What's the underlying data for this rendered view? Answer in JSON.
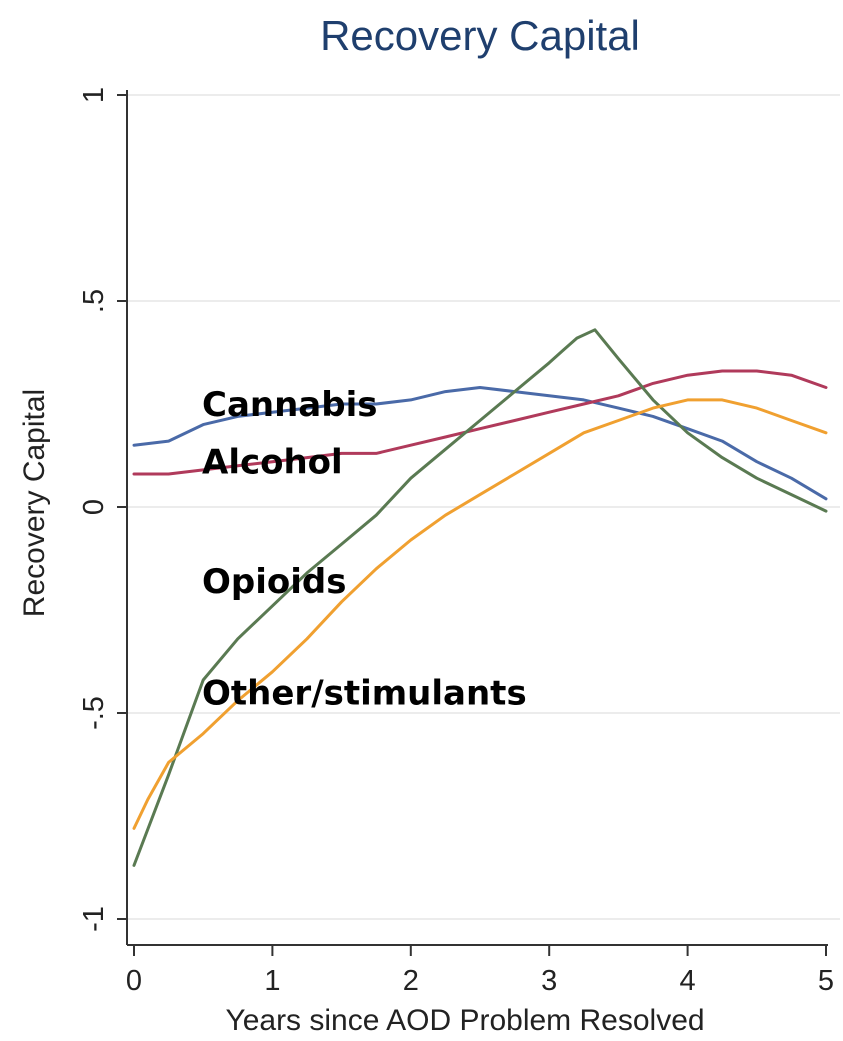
{
  "chart_data": {
    "type": "line",
    "title": "Recovery Capital",
    "xlabel": "Years since AOD Problem Resolved",
    "ylabel": "Recovery Capital",
    "xlim": [
      0,
      5
    ],
    "ylim": [
      -1,
      1
    ],
    "x_ticks": [
      0,
      1,
      2,
      3,
      4,
      5
    ],
    "x_tick_labels": [
      "0",
      "1",
      "2",
      "3",
      "4",
      "5"
    ],
    "y_ticks": [
      -1,
      -0.5,
      0,
      0.5,
      1
    ],
    "y_tick_labels": [
      "-1",
      "-.5",
      "0",
      ".5",
      "1"
    ],
    "grid": "horizontal",
    "legend": "none",
    "series": [
      {
        "name": "Cannabis",
        "color": "#4a6aa8",
        "x": [
          0,
          0.25,
          0.5,
          0.75,
          1,
          1.25,
          1.5,
          1.75,
          2,
          2.25,
          2.5,
          2.75,
          3,
          3.25,
          3.5,
          3.75,
          4,
          4.25,
          4.5,
          4.75,
          5
        ],
        "y": [
          0.15,
          0.16,
          0.2,
          0.22,
          0.23,
          0.24,
          0.25,
          0.25,
          0.26,
          0.28,
          0.29,
          0.28,
          0.27,
          0.26,
          0.24,
          0.22,
          0.19,
          0.16,
          0.11,
          0.07,
          0.02
        ]
      },
      {
        "name": "Alcohol",
        "color": "#b03a5b",
        "x": [
          0,
          0.25,
          0.5,
          0.75,
          1,
          1.25,
          1.5,
          1.75,
          2,
          2.25,
          2.5,
          2.75,
          3,
          3.25,
          3.5,
          3.75,
          4,
          4.25,
          4.5,
          4.75,
          5
        ],
        "y": [
          0.08,
          0.08,
          0.09,
          0.1,
          0.11,
          0.12,
          0.13,
          0.13,
          0.15,
          0.17,
          0.19,
          0.21,
          0.23,
          0.25,
          0.27,
          0.3,
          0.32,
          0.33,
          0.33,
          0.32,
          0.29
        ]
      },
      {
        "name": "Opioids",
        "color": "#5a7a52",
        "x": [
          0,
          0.25,
          0.5,
          0.75,
          1,
          1.25,
          1.5,
          1.75,
          2,
          2.25,
          2.5,
          2.75,
          3,
          3.1,
          3.2,
          3.33,
          3.5,
          3.75,
          4,
          4.25,
          4.5,
          4.75,
          5
        ],
        "y": [
          -0.87,
          -0.65,
          -0.42,
          -0.32,
          -0.24,
          -0.16,
          -0.09,
          -0.02,
          0.07,
          0.14,
          0.21,
          0.28,
          0.35,
          0.38,
          0.41,
          0.43,
          0.36,
          0.26,
          0.18,
          0.12,
          0.07,
          0.03,
          -0.01
        ]
      },
      {
        "name": "Other/stimulants",
        "color": "#f0a030",
        "x": [
          0,
          0.1,
          0.25,
          0.5,
          0.75,
          1,
          1.25,
          1.5,
          1.75,
          2,
          2.25,
          2.5,
          2.75,
          3,
          3.25,
          3.5,
          3.75,
          4,
          4.25,
          4.5,
          4.75,
          5
        ],
        "y": [
          -0.78,
          -0.71,
          -0.62,
          -0.55,
          -0.47,
          -0.4,
          -0.32,
          -0.23,
          -0.15,
          -0.08,
          -0.02,
          0.03,
          0.08,
          0.13,
          0.18,
          0.21,
          0.24,
          0.26,
          0.26,
          0.24,
          0.21,
          0.18
        ]
      }
    ],
    "annotations": [
      {
        "text": "Cannabis",
        "x": 0.5,
        "y": 0.25
      },
      {
        "text": "Alcohol",
        "x": 0.5,
        "y": 0.11
      },
      {
        "text": "Opioids",
        "x": 0.5,
        "y": -0.18
      },
      {
        "text": "Other/stimulants",
        "x": 0.5,
        "y": -0.45
      }
    ]
  }
}
